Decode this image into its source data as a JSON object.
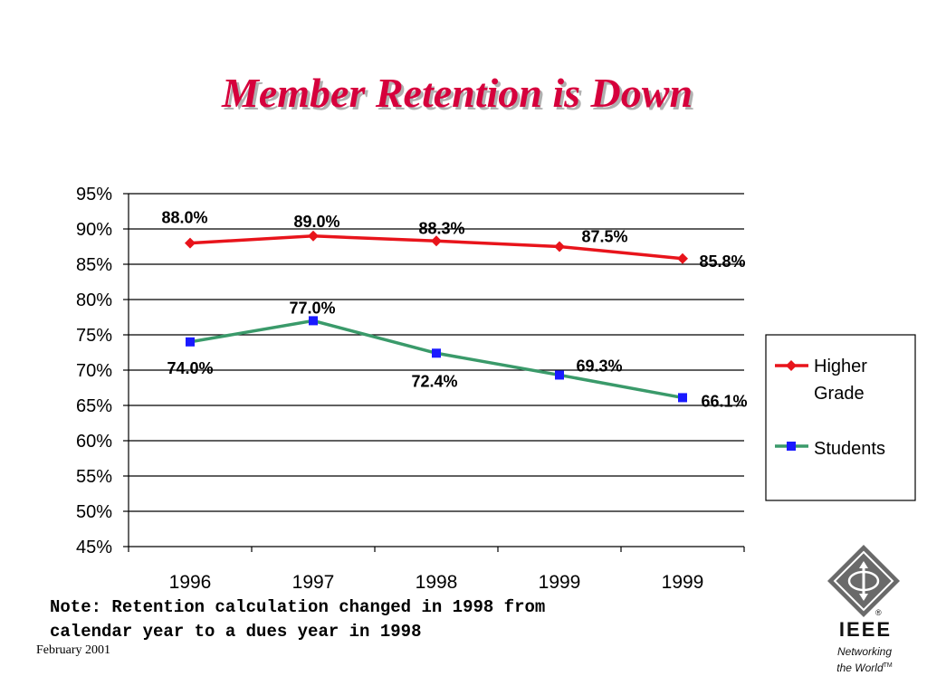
{
  "slide": {
    "title": "Member Retention is Down",
    "note_lines": [
      "Note: Retention calculation changed in 1998 from",
      "calendar year to a dues year in 1998"
    ],
    "footer_date": "February 2001"
  },
  "branding": {
    "ieee_wordmark": "IEEE",
    "registered_mark": "®",
    "tagline_line1": "Networking",
    "tagline_line2": "the World",
    "trademark": "TM"
  },
  "colors": {
    "title": "#d6003c",
    "higher_grade": "#e8141b",
    "students_line": "#3a9a6a",
    "students_marker": "#1a1aff"
  },
  "chart_data": {
    "type": "line",
    "categories": [
      "1996",
      "1997",
      "1998",
      "1999",
      "1999"
    ],
    "ylim": [
      0.45,
      0.95
    ],
    "yticks": [
      "95%",
      "90%",
      "85%",
      "80%",
      "75%",
      "70%",
      "65%",
      "60%",
      "55%",
      "50%",
      "45%"
    ],
    "grid": true,
    "legend_position": "right",
    "series": [
      {
        "name": "Higher Grade",
        "values": [
          0.88,
          0.89,
          0.883,
          0.875,
          0.858
        ],
        "labels": [
          "88.0%",
          "89.0%",
          "88.3%",
          "87.5%",
          "85.8%"
        ],
        "color": "#e8141b",
        "marker": "diamond"
      },
      {
        "name": "Students",
        "values": [
          0.74,
          0.77,
          0.724,
          0.693,
          0.661
        ],
        "labels": [
          "74.0%",
          "77.0%",
          "72.4%",
          "69.3%",
          "66.1%"
        ],
        "color": "#3a9a6a",
        "marker": "square",
        "marker_color": "#1a1aff"
      }
    ],
    "legend_lines": [
      [
        "Higher",
        "Grade"
      ],
      [
        "Students"
      ]
    ]
  }
}
